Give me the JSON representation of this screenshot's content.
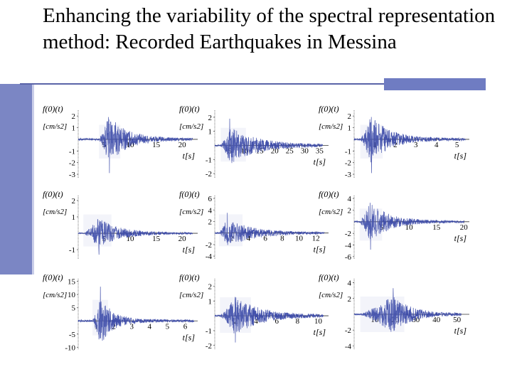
{
  "slide": {
    "title": "Enhancing the variability of the spectral representation method: Recorded Earthquakes in Messina",
    "colors": {
      "accent": "#6f7cc2",
      "side_bar": "#7b86c4",
      "trace": "#3a49a8",
      "trace_light": "#9aa2d6"
    }
  },
  "chart_data": [
    {
      "type": "line",
      "title": "",
      "ylabel_line1": "f(0)(t)",
      "ylabel_line2": "[cm/s2]",
      "xlabel": "t[s]",
      "y_ticks": [
        "2",
        "1",
        "-1",
        "-2",
        "-3"
      ],
      "x_ticks": [
        "5",
        "10",
        "15",
        "20"
      ],
      "xlim": [
        0,
        23
      ],
      "ylim": [
        -3.3,
        2.5
      ],
      "onset": 4,
      "peak_time": 6,
      "peak_amp": 2.9,
      "peak_sign": -1,
      "decay": 3.5,
      "duration": 22
    },
    {
      "type": "line",
      "title": "",
      "ylabel_line1": "f(0)(t)",
      "ylabel_line2": "[cm/s2]",
      "xlabel": "t[s]",
      "y_ticks": [
        "2",
        "1",
        "-1",
        "-2"
      ],
      "x_ticks": [
        "5",
        "10",
        "15",
        "20",
        "25",
        "30",
        "35"
      ],
      "xlim": [
        0,
        38
      ],
      "ylim": [
        -2.3,
        2.5
      ],
      "onset": 2,
      "peak_time": 5,
      "peak_amp": 1.9,
      "peak_sign": 1,
      "decay": 9,
      "duration": 36
    },
    {
      "type": "line",
      "title": "",
      "ylabel_line1": "f(0)(t)",
      "ylabel_line2": "[cm/s2]",
      "xlabel": "t[s]",
      "y_ticks": [
        "2",
        "1",
        "-1",
        "-2",
        "-3"
      ],
      "x_ticks": [
        "1",
        "2",
        "3",
        "4",
        "5"
      ],
      "xlim": [
        0,
        5.6
      ],
      "ylim": [
        -3.3,
        2.5
      ],
      "onset": 0.3,
      "peak_time": 0.85,
      "peak_amp": 2.9,
      "peak_sign": -1,
      "decay": 0.9,
      "duration": 5.4
    },
    {
      "type": "line",
      "title": "",
      "ylabel_line1": "f(0)(t)",
      "ylabel_line2": "[cm/s2]",
      "xlabel": "t[s]",
      "y_ticks": [
        "2",
        "1",
        "-1"
      ],
      "x_ticks": [
        "5",
        "10",
        "15",
        "20"
      ],
      "xlim": [
        0,
        23
      ],
      "ylim": [
        -1.6,
        2.3
      ],
      "onset": 1,
      "peak_time": 4,
      "peak_amp": 1.3,
      "peak_sign": -1,
      "decay": 4,
      "duration": 22
    },
    {
      "type": "line",
      "title": "",
      "ylabel_line1": "f(0)(t)",
      "ylabel_line2": "[cm/s2]",
      "xlabel": "t[s]",
      "y_ticks": [
        "6",
        "4",
        "2",
        "-2",
        "-4"
      ],
      "x_ticks": [
        "2",
        "4",
        "6",
        "8",
        "10",
        "12"
      ],
      "xlim": [
        0,
        13.5
      ],
      "ylim": [
        -4.6,
        6.5
      ],
      "onset": 0.5,
      "peak_time": 1.5,
      "peak_amp": 3.5,
      "peak_sign": 1,
      "decay": 3,
      "duration": 13
    },
    {
      "type": "line",
      "title": "",
      "ylabel_line1": "f(0)(t)",
      "ylabel_line2": "[cm/s2]",
      "xlabel": "t[s]",
      "y_ticks": [
        "4",
        "2",
        "-2",
        "-4",
        "-6"
      ],
      "x_ticks": [
        "5",
        "10",
        "15",
        "20"
      ],
      "xlim": [
        0,
        21
      ],
      "ylim": [
        -6.5,
        4.5
      ],
      "onset": 1,
      "peak_time": 3,
      "peak_amp": 4.8,
      "peak_sign": -1,
      "decay": 3.5,
      "duration": 20
    },
    {
      "type": "line",
      "title": "",
      "ylabel_line1": "f(0)(t)",
      "ylabel_line2": "[cm/s2]",
      "xlabel": "t[s]",
      "y_ticks": [
        "15",
        "10",
        "5",
        "-5",
        "-10"
      ],
      "x_ticks": [
        "1",
        "2",
        "3",
        "4",
        "5",
        "6"
      ],
      "xlim": [
        0,
        6.7
      ],
      "ylim": [
        -11,
        16
      ],
      "onset": 0.8,
      "peak_time": 1.25,
      "peak_amp": 13,
      "peak_sign": 1,
      "decay": 0.7,
      "duration": 6.5
    },
    {
      "type": "line",
      "title": "",
      "ylabel_line1": "f(0)(t)",
      "ylabel_line2": "[cm/s2]",
      "xlabel": "t[s]",
      "y_ticks": [
        "2",
        "1",
        "-1",
        "-2"
      ],
      "x_ticks": [
        "2",
        "4",
        "6",
        "8",
        "10"
      ],
      "xlim": [
        0,
        11
      ],
      "ylim": [
        -2.3,
        2.5
      ],
      "onset": 0.5,
      "peak_time": 2,
      "peak_amp": 1.8,
      "peak_sign": -1,
      "decay": 2.5,
      "duration": 10.5
    },
    {
      "type": "line",
      "title": "",
      "ylabel_line1": "f(0)(t)",
      "ylabel_line2": "[cm/s2]",
      "xlabel": "t[s]",
      "y_ticks": [
        "4",
        "2",
        "-2",
        "-4"
      ],
      "x_ticks": [
        "10",
        "20",
        "30",
        "40",
        "50"
      ],
      "xlim": [
        0,
        56
      ],
      "ylim": [
        -4.5,
        4.5
      ],
      "onset": 3,
      "peak_time": 19,
      "peak_amp": 3.3,
      "peak_sign": 1,
      "decay": 9,
      "duration": 52
    }
  ]
}
